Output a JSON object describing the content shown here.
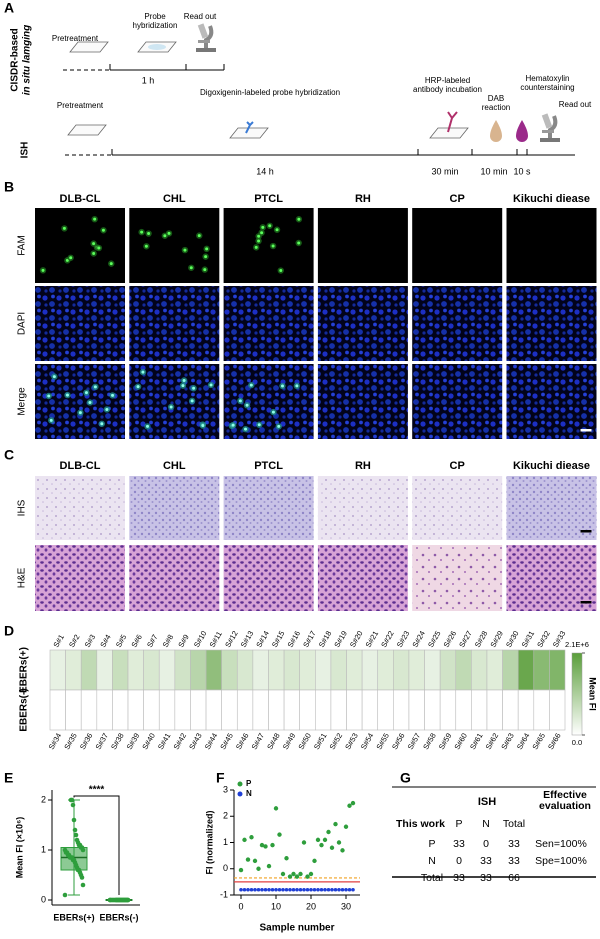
{
  "panel_a": {
    "label": "A",
    "row1_title": "CISDR-based",
    "row1_title_2": "in situ lamging",
    "row2_title": "ISH",
    "steps_1": [
      "Pretreatment",
      "Probe hybridization",
      "Read out"
    ],
    "times_1": [
      "1 h"
    ],
    "steps_2": [
      "Pretreatment",
      "Digoxigenin-labeled probe hybridization",
      "HRP-labeled antibody incubation",
      "DAB reaction",
      "Hematoxylin counterstaining",
      "Read out"
    ],
    "times_2": [
      "14 h",
      "30 min",
      "10 min",
      "10 s"
    ]
  },
  "panel_b": {
    "label": "B",
    "columns": [
      "DLB-CL",
      "CHL",
      "PTCL",
      "RH",
      "CP",
      "Kikuchi diease"
    ],
    "rows": [
      "FAM",
      "DAPI",
      "Merge"
    ]
  },
  "panel_c": {
    "label": "C",
    "columns": [
      "DLB-CL",
      "CHL",
      "PTCL",
      "RH",
      "CP",
      "Kikuchi diease"
    ],
    "rows": [
      "IHS",
      "H&E"
    ]
  },
  "panel_g": {
    "label": "G",
    "header": [
      "ISH",
      "Effective evaluation"
    ],
    "row_label": "This work",
    "columns": [
      "P",
      "N",
      "Total"
    ],
    "rows": [
      [
        "P",
        33,
        0,
        33,
        "Sen=100%"
      ],
      [
        "N",
        0,
        33,
        33,
        "Spe=100%"
      ],
      [
        "Total",
        33,
        33,
        66
      ]
    ]
  },
  "chart_data": [
    {
      "type": "heatmap",
      "label": "D",
      "rows": [
        "EBERs(+)",
        "EBERs(-)"
      ],
      "categories_top": [
        "S#1",
        "S#2",
        "S#3",
        "S#4",
        "S#5",
        "S#6",
        "S#7",
        "S#8",
        "S#9",
        "S#10",
        "S#11",
        "S#12",
        "S#13",
        "S#14",
        "S#15",
        "S#16",
        "S#17",
        "S#18",
        "S#19",
        "S#20",
        "S#21",
        "S#22",
        "S#23",
        "S#24",
        "S#25",
        "S#26",
        "S#27",
        "S#28",
        "S#29",
        "S#30",
        "S#31",
        "S#32",
        "S#33"
      ],
      "categories_bottom": [
        "S#34",
        "S#35",
        "S#36",
        "S#37",
        "S#38",
        "S#39",
        "S#40",
        "S#41",
        "S#42",
        "S#43",
        "S#44",
        "S#45",
        "S#46",
        "S#47",
        "S#48",
        "S#49",
        "S#50",
        "S#51",
        "S#52",
        "S#53",
        "S#54",
        "S#55",
        "S#56",
        "S#57",
        "S#58",
        "S#59",
        "S#60",
        "S#61",
        "S#62",
        "S#63",
        "S#64",
        "S#65",
        "S#66"
      ],
      "values": [
        [
          300000,
          400000,
          800000,
          300000,
          700000,
          400000,
          500000,
          300000,
          600000,
          900000,
          1400000,
          700000,
          500000,
          300000,
          400000,
          500000,
          400000,
          300000,
          500000,
          400000,
          300000,
          400000,
          500000,
          400000,
          300000,
          600000,
          800000,
          500000,
          400000,
          900000,
          1900000,
          1500000,
          1600000
        ],
        [
          0,
          0,
          0,
          0,
          0,
          0,
          0,
          0,
          0,
          0,
          0,
          0,
          0,
          0,
          0,
          0,
          0,
          0,
          0,
          0,
          0,
          0,
          0,
          0,
          0,
          0,
          0,
          0,
          0,
          0,
          0,
          0,
          0
        ]
      ],
      "clim": [
        0,
        2100000
      ],
      "colors": [
        "#ffffff",
        "#5a9e3a"
      ],
      "colorbar_label": "Mean FI",
      "colorbar_ticks": [
        {
          "value": 2100000,
          "label": "2.1E+6"
        },
        {
          "value": 0,
          "label": "0.0"
        }
      ]
    },
    {
      "type": "box",
      "label": "E",
      "ylabel": "Mean FI (×10⁶)",
      "categories": [
        "EBERs(+)",
        "EBERs(-)"
      ],
      "ylim": [
        -0.1,
        2.2
      ],
      "yticks": [
        0,
        1,
        2
      ],
      "color": "#2e9e3c",
      "significance": "****",
      "boxes": [
        {
          "min": 0.1,
          "q1": 0.6,
          "median": 0.85,
          "q3": 1.05,
          "max": 2.0
        },
        {
          "min": 0,
          "q1": 0,
          "median": 0,
          "q3": 0.01,
          "max": 0.02
        }
      ],
      "points": [
        [
          0.1,
          0.3,
          0.45,
          0.5,
          0.55,
          0.6,
          0.6,
          0.65,
          0.7,
          0.75,
          0.8,
          0.8,
          0.85,
          0.85,
          0.85,
          0.9,
          0.9,
          0.95,
          0.95,
          1.0,
          1.0,
          1.05,
          1.05,
          1.1,
          1.1,
          1.15,
          1.2,
          1.3,
          1.4,
          1.6,
          1.9,
          2.0,
          2.0
        ],
        [
          0,
          0,
          0,
          0,
          0,
          0,
          0,
          0,
          0,
          0,
          0,
          0,
          0,
          0,
          0,
          0,
          0,
          0,
          0,
          0,
          0,
          0,
          0,
          0,
          0,
          0,
          0,
          0,
          0,
          0,
          0,
          0,
          0
        ]
      ]
    },
    {
      "type": "scatter",
      "label": "F",
      "xlabel": "Sample number",
      "ylabel": "FI (normalized)",
      "xlim": [
        -2,
        34
      ],
      "xticks": [
        0,
        10,
        20,
        30
      ],
      "ylim": [
        -1,
        3
      ],
      "yticks": [
        -1,
        0,
        1,
        2,
        3
      ],
      "x": [
        0,
        1,
        2,
        3,
        4,
        5,
        6,
        7,
        8,
        9,
        10,
        11,
        12,
        13,
        14,
        15,
        16,
        17,
        18,
        19,
        20,
        21,
        22,
        23,
        24,
        25,
        26,
        27,
        28,
        29,
        30,
        31,
        32
      ],
      "series": [
        {
          "name": "P",
          "color": "#2e9e3c",
          "values": [
            -0.05,
            1.1,
            0.35,
            1.2,
            0.3,
            0.0,
            0.9,
            0.85,
            0.1,
            0.9,
            2.3,
            1.3,
            -0.2,
            0.4,
            -0.3,
            -0.2,
            -0.3,
            -0.2,
            1.0,
            -0.3,
            -0.2,
            0.3,
            1.1,
            0.9,
            1.1,
            1.4,
            0.8,
            1.7,
            1.0,
            0.7,
            1.6,
            2.4,
            2.5
          ]
        },
        {
          "name": "N",
          "color": "#1f3fd6",
          "values": [
            -0.8,
            -0.8,
            -0.8,
            -0.8,
            -0.8,
            -0.8,
            -0.8,
            -0.8,
            -0.8,
            -0.8,
            -0.8,
            -0.8,
            -0.8,
            -0.8,
            -0.8,
            -0.8,
            -0.8,
            -0.8,
            -0.8,
            -0.8,
            -0.8,
            -0.8,
            -0.8,
            -0.8,
            -0.8,
            -0.8,
            -0.8,
            -0.8,
            -0.8,
            -0.8,
            -0.8,
            -0.8,
            -0.8
          ]
        }
      ],
      "reference_lines": [
        {
          "value": -0.35,
          "color": "#f0a020"
        },
        {
          "value": -0.5,
          "color": "#e04040"
        }
      ],
      "legend": "upper left"
    }
  ]
}
